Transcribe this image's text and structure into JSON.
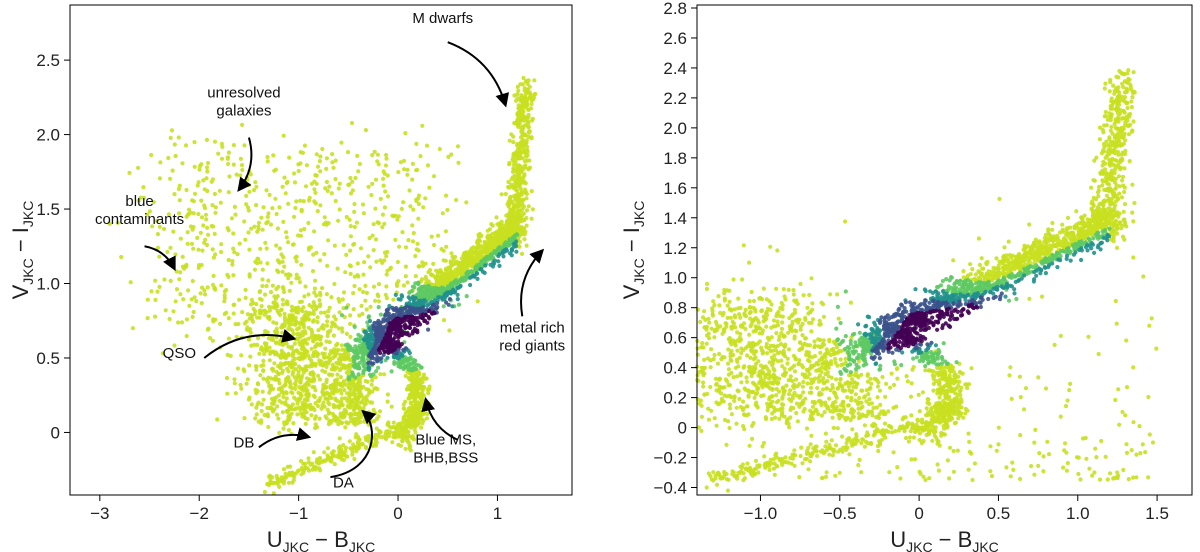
{
  "chart_data": [
    {
      "type": "scatter",
      "id": "left",
      "title": "",
      "xlabel": "U_JKC − B_JKC",
      "ylabel": "V_JKC − I_JKC",
      "xlabel_parts": {
        "a": "U",
        "a_sub": "JKC",
        "op": " − ",
        "b": "B",
        "b_sub": "JKC"
      },
      "ylabel_parts": {
        "a": "V",
        "a_sub": "JKC",
        "op": " − ",
        "b": "I",
        "b_sub": "JKC"
      },
      "xlim": [
        -3.3,
        1.75
      ],
      "ylim": [
        -0.42,
        2.87
      ],
      "xticks": [
        -3,
        -2,
        -1,
        0,
        1
      ],
      "xtick_labels": [
        "−3",
        "−2",
        "−1",
        "0",
        "1"
      ],
      "yticks": [
        0,
        0.5,
        1.0,
        1.5,
        2.0,
        2.5
      ],
      "ytick_labels": [
        "0",
        "0.5",
        "1.0",
        "1.5",
        "2.0",
        "2.5"
      ],
      "colormap": [
        "#440154",
        "#3b528b",
        "#21918c",
        "#5ec962",
        "#c8e020"
      ],
      "annotations": [
        {
          "text": [
            "M dwarfs"
          ],
          "text_at": [
            0.45,
            2.75
          ],
          "arrow_from": [
            0.5,
            2.62
          ],
          "arrow_to": [
            1.08,
            2.2
          ],
          "anchor": "middle"
        },
        {
          "text": [
            "unresolved",
            "galaxies"
          ],
          "text_at": [
            -1.55,
            2.25
          ],
          "arrow_from": [
            -1.5,
            1.98
          ],
          "arrow_to": [
            -1.6,
            1.63
          ],
          "anchor": "middle"
        },
        {
          "text": [
            "blue",
            "contaminants"
          ],
          "text_at": [
            -2.6,
            1.52
          ],
          "arrow_from": [
            -2.55,
            1.25
          ],
          "arrow_to": [
            -2.25,
            1.1
          ],
          "anchor": "middle"
        },
        {
          "text": [
            "QSO"
          ],
          "text_at": [
            -2.2,
            0.5
          ],
          "arrow_from": [
            -1.95,
            0.5
          ],
          "arrow_to": [
            -1.05,
            0.63
          ],
          "anchor": "middle"
        },
        {
          "text": [
            "DB"
          ],
          "text_at": [
            -1.55,
            -0.1
          ],
          "arrow_from": [
            -1.4,
            -0.1
          ],
          "arrow_to": [
            -0.9,
            -0.03
          ],
          "anchor": "middle"
        },
        {
          "text": [
            "DA"
          ],
          "text_at": [
            -0.55,
            -0.37
          ],
          "arrow_from": [
            -0.35,
            -0.13
          ],
          "arrow_to": [
            -0.35,
            0.14
          ],
          "arrow_path": "da",
          "anchor": "middle"
        },
        {
          "text": [
            "Blue MS,",
            "BHB,BSS"
          ],
          "text_at": [
            0.48,
            -0.08
          ],
          "arrow_from": [
            0.6,
            -0.05
          ],
          "arrow_to": [
            0.28,
            0.22
          ],
          "anchor": "middle"
        },
        {
          "text": [
            "metal rich",
            "red giants"
          ],
          "text_at": [
            1.35,
            0.67
          ],
          "arrow_from": [
            1.25,
            0.78
          ],
          "arrow_to": [
            1.45,
            1.22
          ],
          "anchor": "middle"
        }
      ]
    },
    {
      "type": "scatter",
      "id": "right",
      "title": "",
      "xlabel": "U_JKC − B_JKC",
      "ylabel": "V_JKC − I_JKC",
      "xlabel_parts": {
        "a": "U",
        "a_sub": "JKC",
        "op": " − ",
        "b": "B",
        "b_sub": "JKC"
      },
      "ylabel_parts": {
        "a": "V",
        "a_sub": "JKC",
        "op": " − ",
        "b": "I",
        "b_sub": "JKC"
      },
      "xlim": [
        -1.4,
        1.72
      ],
      "ylim": [
        -0.45,
        2.82
      ],
      "xticks": [
        -1.0,
        -0.5,
        0,
        0.5,
        1.0,
        1.5
      ],
      "xtick_labels": [
        "−1.0",
        "−0.5",
        "0",
        "0.5",
        "1.0",
        "1.5"
      ],
      "yticks": [
        -0.4,
        -0.2,
        0,
        0.2,
        0.4,
        0.6,
        0.8,
        1.0,
        1.2,
        1.4,
        1.6,
        1.8,
        2.0,
        2.2,
        2.4,
        2.6,
        2.8
      ],
      "ytick_labels": [
        "−0.4",
        "−0.2",
        "0",
        "0.2",
        "0.4",
        "0.6",
        "0.8",
        "1.0",
        "1.2",
        "1.4",
        "1.6",
        "1.8",
        "2.0",
        "2.2",
        "2.4",
        "2.6",
        "2.8"
      ],
      "colormap": [
        "#440154",
        "#3b528b",
        "#21918c",
        "#5ec962",
        "#c8e020"
      ],
      "annotations": []
    }
  ]
}
